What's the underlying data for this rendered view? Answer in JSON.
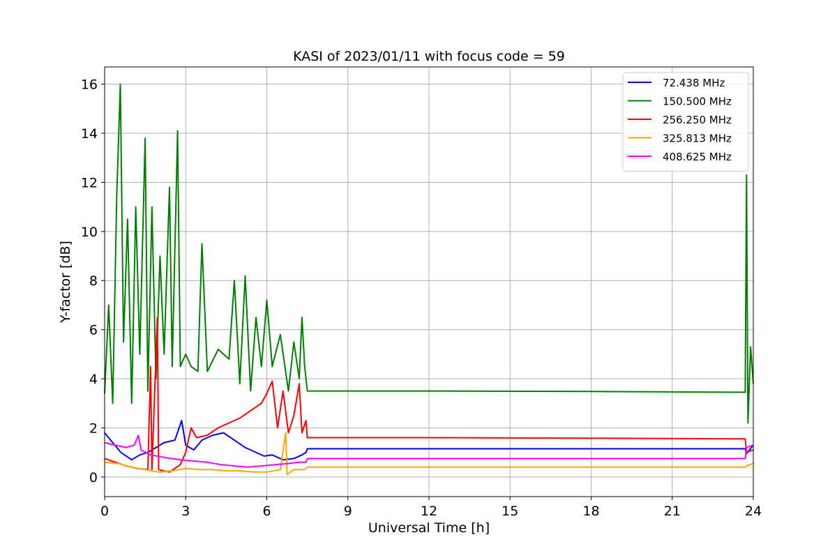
{
  "chart_data": {
    "type": "line",
    "title": "KASI of 2023/01/11 with focus code = 59",
    "xlabel": "Universal Time [h]",
    "ylabel": "Y-factor [dB]",
    "xlim": [
      0,
      24
    ],
    "ylim": [
      -0.8,
      16.7
    ],
    "x_ticks": [
      0,
      3,
      6,
      9,
      12,
      15,
      18,
      21,
      24
    ],
    "x_tick_labels": [
      "0",
      "3",
      "6",
      "9",
      "12",
      "15",
      "18",
      "21",
      "24"
    ],
    "y_ticks": [
      0,
      2,
      4,
      6,
      8,
      10,
      12,
      14,
      16
    ],
    "y_tick_labels": [
      "0",
      "2",
      "4",
      "6",
      "8",
      "10",
      "12",
      "14",
      "16"
    ],
    "grid": true,
    "legend_position": "top-right",
    "series": [
      {
        "name": "72.438 MHz",
        "color": "#0000ff",
        "points": [
          [
            0,
            1.8
          ],
          [
            0.3,
            1.4
          ],
          [
            0.6,
            1.0
          ],
          [
            1.0,
            0.7
          ],
          [
            1.3,
            0.9
          ],
          [
            1.6,
            1.0
          ],
          [
            1.9,
            1.2
          ],
          [
            2.2,
            1.4
          ],
          [
            2.6,
            1.5
          ],
          [
            2.85,
            2.3
          ],
          [
            3.0,
            1.3
          ],
          [
            3.3,
            1.1
          ],
          [
            3.6,
            1.5
          ],
          [
            4.0,
            1.7
          ],
          [
            4.4,
            1.8
          ],
          [
            4.8,
            1.5
          ],
          [
            5.2,
            1.2
          ],
          [
            5.6,
            1.0
          ],
          [
            5.9,
            0.85
          ],
          [
            6.2,
            0.9
          ],
          [
            6.6,
            0.7
          ],
          [
            7.0,
            0.75
          ],
          [
            7.3,
            0.9
          ],
          [
            7.45,
            1.0
          ],
          [
            7.5,
            1.15
          ],
          [
            12,
            1.15
          ],
          [
            18,
            1.15
          ],
          [
            23.7,
            1.15
          ],
          [
            23.75,
            0.95
          ],
          [
            24,
            1.3
          ]
        ]
      },
      {
        "name": "150.500 MHz",
        "color": "#008000",
        "points": [
          [
            0,
            3.4
          ],
          [
            0.15,
            7.0
          ],
          [
            0.3,
            3.0
          ],
          [
            0.45,
            11.5
          ],
          [
            0.58,
            16.0
          ],
          [
            0.7,
            5.5
          ],
          [
            0.85,
            10.5
          ],
          [
            1.0,
            3.0
          ],
          [
            1.15,
            11.0
          ],
          [
            1.3,
            5.0
          ],
          [
            1.5,
            13.8
          ],
          [
            1.6,
            3.5
          ],
          [
            1.75,
            11.0
          ],
          [
            1.9,
            4.0
          ],
          [
            2.05,
            9.0
          ],
          [
            2.2,
            5.0
          ],
          [
            2.4,
            11.8
          ],
          [
            2.5,
            4.5
          ],
          [
            2.7,
            14.1
          ],
          [
            2.8,
            4.5
          ],
          [
            3.0,
            5.0
          ],
          [
            3.2,
            4.5
          ],
          [
            3.45,
            4.3
          ],
          [
            3.6,
            9.5
          ],
          [
            3.8,
            4.3
          ],
          [
            4.2,
            5.2
          ],
          [
            4.6,
            4.8
          ],
          [
            4.8,
            8.0
          ],
          [
            5.0,
            3.8
          ],
          [
            5.2,
            8.2
          ],
          [
            5.4,
            3.5
          ],
          [
            5.6,
            6.5
          ],
          [
            5.8,
            4.5
          ],
          [
            6.0,
            7.2
          ],
          [
            6.2,
            4.5
          ],
          [
            6.5,
            5.8
          ],
          [
            6.8,
            3.5
          ],
          [
            7.0,
            5.5
          ],
          [
            7.2,
            4.0
          ],
          [
            7.3,
            6.5
          ],
          [
            7.4,
            4.5
          ],
          [
            7.5,
            3.5
          ],
          [
            12,
            3.5
          ],
          [
            18,
            3.48
          ],
          [
            23.7,
            3.45
          ],
          [
            23.75,
            12.3
          ],
          [
            23.8,
            2.2
          ],
          [
            23.9,
            5.3
          ],
          [
            24,
            3.8
          ]
        ]
      },
      {
        "name": "256.250 MHz",
        "color": "#ff0000",
        "points": [
          [
            0,
            0.75
          ],
          [
            0.4,
            0.6
          ],
          [
            0.8,
            0.45
          ],
          [
            1.2,
            0.35
          ],
          [
            1.6,
            0.3
          ],
          [
            1.7,
            4.5
          ],
          [
            1.75,
            0.3
          ],
          [
            1.95,
            6.5
          ],
          [
            2.0,
            0.3
          ],
          [
            2.4,
            0.2
          ],
          [
            2.8,
            0.5
          ],
          [
            3.0,
            1.0
          ],
          [
            3.2,
            2.0
          ],
          [
            3.4,
            1.6
          ],
          [
            3.8,
            1.7
          ],
          [
            4.2,
            2.0
          ],
          [
            4.6,
            2.2
          ],
          [
            5.0,
            2.4
          ],
          [
            5.4,
            2.7
          ],
          [
            5.8,
            3.0
          ],
          [
            6.0,
            3.4
          ],
          [
            6.2,
            3.9
          ],
          [
            6.4,
            2.0
          ],
          [
            6.6,
            3.5
          ],
          [
            6.8,
            1.8
          ],
          [
            7.0,
            2.5
          ],
          [
            7.2,
            3.8
          ],
          [
            7.3,
            1.8
          ],
          [
            7.45,
            2.3
          ],
          [
            7.5,
            1.6
          ],
          [
            12,
            1.6
          ],
          [
            18,
            1.58
          ],
          [
            23.7,
            1.55
          ],
          [
            23.75,
            1.0
          ],
          [
            24,
            1.1
          ]
        ]
      },
      {
        "name": "325.813 MHz",
        "color": "#ffa500",
        "points": [
          [
            0,
            0.6
          ],
          [
            0.5,
            0.55
          ],
          [
            1.0,
            0.4
          ],
          [
            1.5,
            0.3
          ],
          [
            2.0,
            0.2
          ],
          [
            2.5,
            0.25
          ],
          [
            3.0,
            0.35
          ],
          [
            3.5,
            0.3
          ],
          [
            4.0,
            0.3
          ],
          [
            4.5,
            0.25
          ],
          [
            5.0,
            0.25
          ],
          [
            5.5,
            0.2
          ],
          [
            6.0,
            0.2
          ],
          [
            6.5,
            0.3
          ],
          [
            6.7,
            1.8
          ],
          [
            6.75,
            0.1
          ],
          [
            7.0,
            0.3
          ],
          [
            7.4,
            0.3
          ],
          [
            7.5,
            0.4
          ],
          [
            12,
            0.4
          ],
          [
            18,
            0.4
          ],
          [
            23.7,
            0.4
          ],
          [
            23.75,
            0.45
          ],
          [
            24,
            0.55
          ]
        ]
      },
      {
        "name": "408.625 MHz",
        "color": "#ff00ff",
        "points": [
          [
            0,
            1.4
          ],
          [
            0.4,
            1.3
          ],
          [
            0.8,
            1.2
          ],
          [
            1.1,
            1.3
          ],
          [
            1.25,
            1.7
          ],
          [
            1.35,
            1.1
          ],
          [
            1.7,
            0.9
          ],
          [
            2.2,
            0.8
          ],
          [
            2.8,
            0.7
          ],
          [
            3.3,
            0.65
          ],
          [
            3.8,
            0.6
          ],
          [
            4.3,
            0.5
          ],
          [
            4.8,
            0.45
          ],
          [
            5.3,
            0.4
          ],
          [
            5.8,
            0.45
          ],
          [
            6.3,
            0.5
          ],
          [
            6.8,
            0.55
          ],
          [
            7.2,
            0.6
          ],
          [
            7.45,
            0.6
          ],
          [
            7.5,
            0.75
          ],
          [
            12,
            0.75
          ],
          [
            18,
            0.75
          ],
          [
            23.7,
            0.75
          ],
          [
            23.75,
            1.2
          ],
          [
            24,
            1.3
          ]
        ]
      }
    ]
  }
}
